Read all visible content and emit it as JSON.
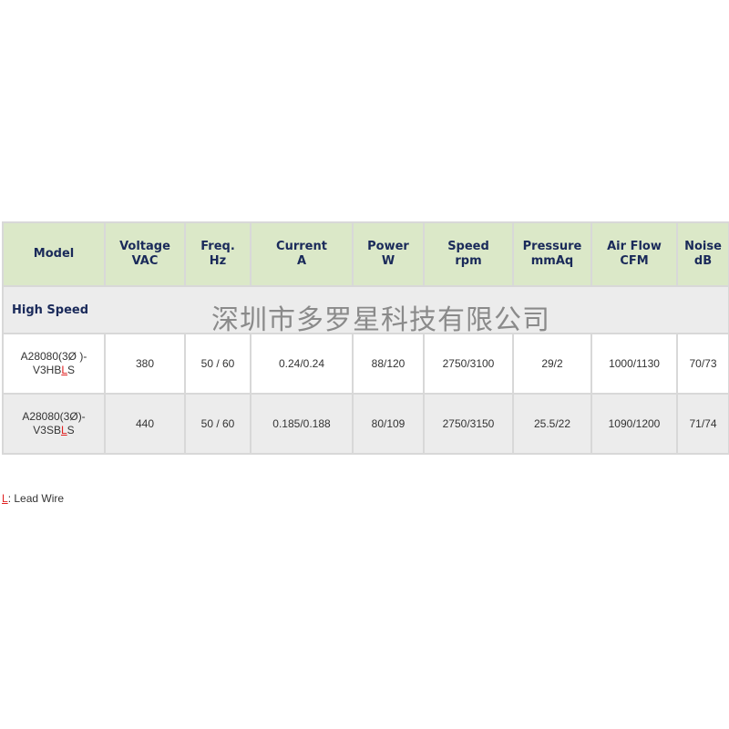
{
  "headers": [
    [
      "Model",
      ""
    ],
    [
      "Voltage",
      "VAC"
    ],
    [
      "Freq.",
      "Hz"
    ],
    [
      "Current",
      "A"
    ],
    [
      "Power",
      "W"
    ],
    [
      "Speed",
      "rpm"
    ],
    [
      "Pressure",
      "mmAq"
    ],
    [
      "Air Flow",
      "CFM"
    ],
    [
      "Noise",
      "dB"
    ]
  ],
  "section": "High Speed",
  "rows": [
    {
      "model_a": "A28080(3Ø )-",
      "model_b": "V3HB",
      "model_l": "L",
      "model_c": "S",
      "cells": [
        "380",
        "50 / 60",
        "0.24/0.24",
        "88/120",
        "2750/3100",
        "29/2",
        "1000/1130",
        "70/73"
      ]
    },
    {
      "model_a": "A28080(3Ø)-",
      "model_b": "V3SB",
      "model_l": "L",
      "model_c": "S",
      "cells": [
        "440",
        "50 / 60",
        "0.185/0.188",
        "80/109",
        "2750/3150",
        "25.5/22",
        "1090/1200",
        "71/74"
      ]
    }
  ],
  "watermark": "深圳市多罗星科技有限公司",
  "legend": {
    "key": "L",
    "text": ": Lead Wire"
  },
  "colors": {
    "header_bg": "#dbe8c8",
    "header_text": "#1a2a5a",
    "accent_red": "#e02020"
  }
}
